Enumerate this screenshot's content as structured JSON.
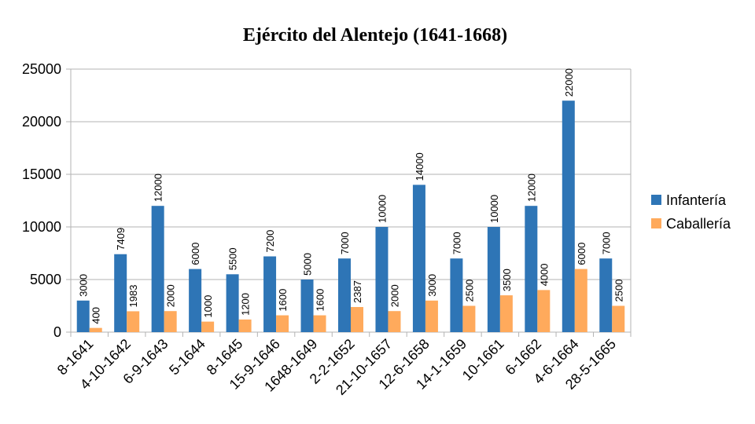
{
  "chart_data": {
    "type": "bar",
    "title": "Ejército del Alentejo (1641-1668)",
    "xlabel": "",
    "ylabel": "",
    "ylim": [
      0,
      25000
    ],
    "yticks": [
      0,
      5000,
      10000,
      15000,
      20000,
      25000
    ],
    "grid": true,
    "legend": "right",
    "categories": [
      "8-1641",
      "4-10-1642",
      "6-9-1643",
      "5-1644",
      "8-1645",
      "15-9-1646",
      "1648-1649",
      "2-2-1652",
      "21-10-1657",
      "12-6-1658",
      "14-1-1659",
      "10-1661",
      "6-1662",
      "4-6-1664",
      "28-5-1665"
    ],
    "series": [
      {
        "name": "Infantería",
        "color": "#2e75b6",
        "values": [
          3000,
          7409,
          12000,
          6000,
          5500,
          7200,
          5000,
          7000,
          10000,
          14000,
          7000,
          10000,
          12000,
          22000,
          7000
        ]
      },
      {
        "name": "Caballería",
        "color": "#ffaa5c",
        "values": [
          400,
          1983,
          2000,
          1000,
          1200,
          1600,
          1600,
          2387,
          2000,
          3000,
          2500,
          3500,
          4000,
          6000,
          2500
        ]
      }
    ]
  }
}
